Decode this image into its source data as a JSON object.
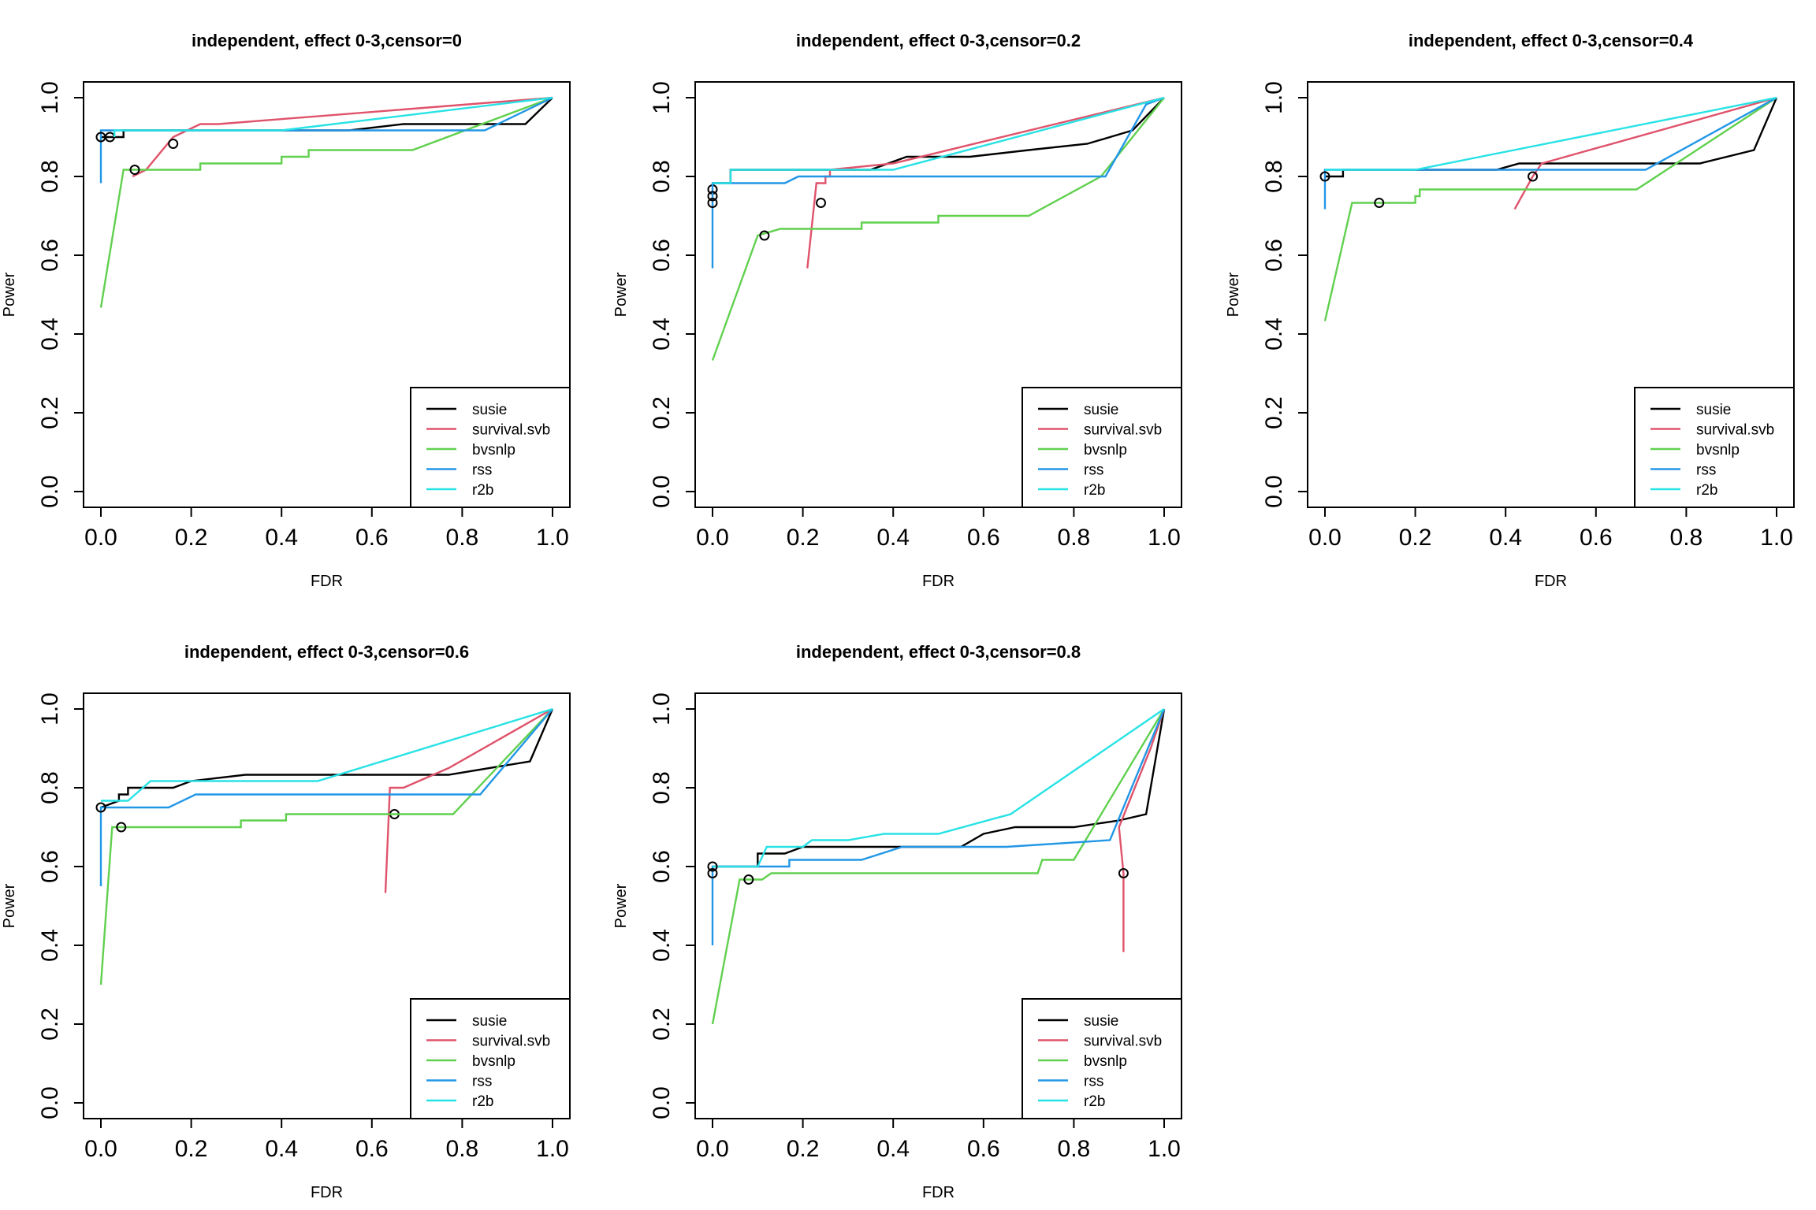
{
  "figure": {
    "legend_entries": [
      {
        "name": "susie",
        "color": "#000000"
      },
      {
        "name": "survival.svb",
        "color": "#DF536B"
      },
      {
        "name": "bvsnlp",
        "color": "#61D04F"
      },
      {
        "name": "rss",
        "color": "#2297E6"
      },
      {
        "name": "r2b",
        "color": "#28E2E5"
      }
    ]
  },
  "chart_data": [
    {
      "type": "line",
      "title": "independent, effect 0-3,censor=0",
      "xlabel": "FDR",
      "ylabel": "Power",
      "xlim": [
        0,
        1
      ],
      "ylim": [
        0,
        1
      ],
      "xticks": [
        "0.0",
        "0.2",
        "0.4",
        "0.6",
        "0.8",
        "1.0"
      ],
      "yticks": [
        "0.0",
        "0.2",
        "0.4",
        "0.6",
        "0.8",
        "1.0"
      ],
      "legend_position": "bottom-right",
      "series": [
        {
          "name": "susie",
          "color": "#000000",
          "points": [
            [
              0,
              0.9
            ],
            [
              0.05,
              0.9
            ],
            [
              0.05,
              0.917
            ],
            [
              0.2,
              0.917
            ],
            [
              0.55,
              0.917
            ],
            [
              0.67,
              0.933
            ],
            [
              0.94,
              0.933
            ],
            [
              1,
              1
            ]
          ],
          "marker": [
            0.02,
            0.9
          ]
        },
        {
          "name": "survival.svb",
          "color": "#DF536B",
          "points": [
            [
              0.07,
              0.8
            ],
            [
              0.1,
              0.817
            ],
            [
              0.16,
              0.9
            ],
            [
              0.22,
              0.933
            ],
            [
              0.26,
              0.933
            ],
            [
              1,
              1
            ]
          ],
          "marker": [
            0.16,
            0.883
          ]
        },
        {
          "name": "bvsnlp",
          "color": "#61D04F",
          "points": [
            [
              0,
              0.467
            ],
            [
              0.05,
              0.817
            ],
            [
              0.22,
              0.817
            ],
            [
              0.22,
              0.833
            ],
            [
              0.4,
              0.833
            ],
            [
              0.4,
              0.85
            ],
            [
              0.46,
              0.85
            ],
            [
              0.46,
              0.867
            ],
            [
              0.69,
              0.867
            ],
            [
              1,
              1
            ]
          ],
          "marker": [
            0.075,
            0.817
          ]
        },
        {
          "name": "rss",
          "color": "#2297E6",
          "points": [
            [
              0,
              0.783
            ],
            [
              0,
              0.917
            ],
            [
              0.85,
              0.917
            ],
            [
              1,
              1
            ]
          ],
          "marker": [
            0,
            0.9
          ]
        },
        {
          "name": "r2b",
          "color": "#28E2E5",
          "points": [
            [
              0.03,
              0.9
            ],
            [
              0.03,
              0.917
            ],
            [
              0.4,
              0.917
            ],
            [
              1,
              1
            ]
          ],
          "marker": null
        }
      ]
    },
    {
      "type": "line",
      "title": "independent, effect 0-3,censor=0.2",
      "xlabel": "FDR",
      "ylabel": "Power",
      "xlim": [
        0,
        1
      ],
      "ylim": [
        0,
        1
      ],
      "xticks": [
        "0.0",
        "0.2",
        "0.4",
        "0.6",
        "0.8",
        "1.0"
      ],
      "yticks": [
        "0.0",
        "0.2",
        "0.4",
        "0.6",
        "0.8",
        "1.0"
      ],
      "legend_position": "bottom-right",
      "series": [
        {
          "name": "susie",
          "color": "#000000",
          "points": [
            [
              0,
              0.783
            ],
            [
              0.04,
              0.783
            ],
            [
              0.04,
              0.817
            ],
            [
              0.35,
              0.817
            ],
            [
              0.43,
              0.85
            ],
            [
              0.57,
              0.85
            ],
            [
              0.7,
              0.867
            ],
            [
              0.83,
              0.883
            ],
            [
              0.93,
              0.917
            ],
            [
              1,
              1
            ]
          ],
          "marker": [
            0,
            0.767
          ]
        },
        {
          "name": "survival.svb",
          "color": "#DF536B",
          "points": [
            [
              0.21,
              0.567
            ],
            [
              0.23,
              0.783
            ],
            [
              0.25,
              0.783
            ],
            [
              0.25,
              0.8
            ],
            [
              0.26,
              0.8
            ],
            [
              0.26,
              0.817
            ],
            [
              0.4,
              0.833
            ],
            [
              1,
              1
            ]
          ],
          "marker": [
            0.24,
            0.733
          ]
        },
        {
          "name": "bvsnlp",
          "color": "#61D04F",
          "points": [
            [
              0,
              0.333
            ],
            [
              0.1,
              0.65
            ],
            [
              0.15,
              0.667
            ],
            [
              0.33,
              0.667
            ],
            [
              0.33,
              0.683
            ],
            [
              0.5,
              0.683
            ],
            [
              0.5,
              0.7
            ],
            [
              0.7,
              0.7
            ],
            [
              0.86,
              0.8
            ],
            [
              1,
              1
            ]
          ],
          "marker": [
            0.115,
            0.65
          ]
        },
        {
          "name": "rss",
          "color": "#2297E6",
          "points": [
            [
              0,
              0.567
            ],
            [
              0,
              0.783
            ],
            [
              0.16,
              0.783
            ],
            [
              0.19,
              0.8
            ],
            [
              0.87,
              0.8
            ],
            [
              0.96,
              0.983
            ],
            [
              1,
              1
            ]
          ],
          "marker": [
            0,
            0.75
          ]
        },
        {
          "name": "r2b",
          "color": "#28E2E5",
          "points": [
            [
              0,
              0.783
            ],
            [
              0.04,
              0.783
            ],
            [
              0.04,
              0.817
            ],
            [
              0.4,
              0.817
            ],
            [
              1,
              1
            ]
          ],
          "marker": [
            0,
            0.733
          ]
        }
      ]
    },
    {
      "type": "line",
      "title": "independent, effect 0-3,censor=0.4",
      "xlabel": "FDR",
      "ylabel": "Power",
      "xlim": [
        0,
        1
      ],
      "ylim": [
        0,
        1
      ],
      "xticks": [
        "0.0",
        "0.2",
        "0.4",
        "0.6",
        "0.8",
        "1.0"
      ],
      "yticks": [
        "0.0",
        "0.2",
        "0.4",
        "0.6",
        "0.8",
        "1.0"
      ],
      "legend_position": "bottom-right",
      "series": [
        {
          "name": "susie",
          "color": "#000000",
          "points": [
            [
              0,
              0.8
            ],
            [
              0.04,
              0.8
            ],
            [
              0.04,
              0.817
            ],
            [
              0.38,
              0.817
            ],
            [
              0.43,
              0.833
            ],
            [
              0.83,
              0.833
            ],
            [
              0.95,
              0.867
            ],
            [
              1,
              1
            ]
          ],
          "marker": null
        },
        {
          "name": "survival.svb",
          "color": "#DF536B",
          "points": [
            [
              0.42,
              0.717
            ],
            [
              0.46,
              0.8
            ],
            [
              0.48,
              0.833
            ],
            [
              1,
              1
            ]
          ],
          "marker": [
            0.46,
            0.8
          ]
        },
        {
          "name": "bvsnlp",
          "color": "#61D04F",
          "points": [
            [
              0,
              0.433
            ],
            [
              0.06,
              0.733
            ],
            [
              0.2,
              0.733
            ],
            [
              0.2,
              0.75
            ],
            [
              0.21,
              0.75
            ],
            [
              0.21,
              0.767
            ],
            [
              0.69,
              0.767
            ],
            [
              1,
              1
            ]
          ],
          "marker": [
            0.12,
            0.733
          ]
        },
        {
          "name": "rss",
          "color": "#2297E6",
          "points": [
            [
              0,
              0.717
            ],
            [
              0,
              0.817
            ],
            [
              0.71,
              0.817
            ],
            [
              1,
              1
            ]
          ],
          "marker": [
            0,
            0.8
          ]
        },
        {
          "name": "r2b",
          "color": "#28E2E5",
          "points": [
            [
              0,
              0.817
            ],
            [
              0.2,
              0.817
            ],
            [
              1,
              1
            ]
          ],
          "marker": null
        }
      ]
    },
    {
      "type": "line",
      "title": "independent, effect 0-3,censor=0.6",
      "xlabel": "FDR",
      "ylabel": "Power",
      "xlim": [
        0,
        1
      ],
      "ylim": [
        0,
        1
      ],
      "xticks": [
        "0.0",
        "0.2",
        "0.4",
        "0.6",
        "0.8",
        "1.0"
      ],
      "yticks": [
        "0.0",
        "0.2",
        "0.4",
        "0.6",
        "0.8",
        "1.0"
      ],
      "legend_position": "bottom-right",
      "series": [
        {
          "name": "susie",
          "color": "#000000",
          "points": [
            [
              0,
              0.75
            ],
            [
              0.04,
              0.767
            ],
            [
              0.04,
              0.783
            ],
            [
              0.06,
              0.783
            ],
            [
              0.06,
              0.8
            ],
            [
              0.16,
              0.8
            ],
            [
              0.2,
              0.817
            ],
            [
              0.32,
              0.833
            ],
            [
              0.77,
              0.833
            ],
            [
              0.95,
              0.867
            ],
            [
              1,
              1
            ]
          ],
          "marker": null
        },
        {
          "name": "survival.svb",
          "color": "#DF536B",
          "points": [
            [
              0.63,
              0.533
            ],
            [
              0.64,
              0.8
            ],
            [
              0.67,
              0.8
            ],
            [
              0.77,
              0.85
            ],
            [
              1,
              1
            ]
          ],
          "marker": [
            0.65,
            0.733
          ]
        },
        {
          "name": "bvsnlp",
          "color": "#61D04F",
          "points": [
            [
              0,
              0.3
            ],
            [
              0.025,
              0.7
            ],
            [
              0.31,
              0.7
            ],
            [
              0.31,
              0.717
            ],
            [
              0.41,
              0.717
            ],
            [
              0.41,
              0.733
            ],
            [
              0.78,
              0.733
            ],
            [
              1,
              1
            ]
          ],
          "marker": [
            0.045,
            0.7
          ]
        },
        {
          "name": "rss",
          "color": "#2297E6",
          "points": [
            [
              0,
              0.55
            ],
            [
              0,
              0.75
            ],
            [
              0.15,
              0.75
            ],
            [
              0.21,
              0.783
            ],
            [
              0.84,
              0.783
            ],
            [
              1,
              1
            ]
          ],
          "marker": [
            0,
            0.75
          ]
        },
        {
          "name": "r2b",
          "color": "#28E2E5",
          "points": [
            [
              0,
              0.767
            ],
            [
              0.06,
              0.767
            ],
            [
              0.11,
              0.817
            ],
            [
              0.48,
              0.817
            ],
            [
              1,
              1
            ]
          ],
          "marker": null
        }
      ]
    },
    {
      "type": "line",
      "title": "independent, effect 0-3,censor=0.8",
      "xlabel": "FDR",
      "ylabel": "Power",
      "xlim": [
        0,
        1
      ],
      "ylim": [
        0,
        1
      ],
      "xticks": [
        "0.0",
        "0.2",
        "0.4",
        "0.6",
        "0.8",
        "1.0"
      ],
      "yticks": [
        "0.0",
        "0.2",
        "0.4",
        "0.6",
        "0.8",
        "1.0"
      ],
      "legend_position": "bottom-right",
      "series": [
        {
          "name": "susie",
          "color": "#000000",
          "points": [
            [
              0,
              0.6
            ],
            [
              0.1,
              0.6
            ],
            [
              0.1,
              0.633
            ],
            [
              0.16,
              0.633
            ],
            [
              0.2,
              0.65
            ],
            [
              0.55,
              0.65
            ],
            [
              0.6,
              0.683
            ],
            [
              0.67,
              0.7
            ],
            [
              0.8,
              0.7
            ],
            [
              0.9,
              0.717
            ],
            [
              0.96,
              0.733
            ],
            [
              1,
              1
            ]
          ],
          "marker": null
        },
        {
          "name": "survival.svb",
          "color": "#DF536B",
          "points": [
            [
              0.91,
              0.383
            ],
            [
              0.91,
              0.583
            ],
            [
              0.9,
              0.7
            ],
            [
              0.97,
              0.9
            ],
            [
              1,
              1
            ]
          ],
          "marker": [
            0.91,
            0.583
          ]
        },
        {
          "name": "bvsnlp",
          "color": "#61D04F",
          "points": [
            [
              0,
              0.2
            ],
            [
              0.06,
              0.567
            ],
            [
              0.11,
              0.567
            ],
            [
              0.13,
              0.583
            ],
            [
              0.72,
              0.583
            ],
            [
              0.73,
              0.617
            ],
            [
              0.8,
              0.617
            ],
            [
              1,
              1
            ]
          ],
          "marker": [
            0.08,
            0.567
          ]
        },
        {
          "name": "rss",
          "color": "#2297E6",
          "points": [
            [
              0,
              0.4
            ],
            [
              0,
              0.6
            ],
            [
              0.17,
              0.6
            ],
            [
              0.17,
              0.617
            ],
            [
              0.33,
              0.617
            ],
            [
              0.42,
              0.65
            ],
            [
              0.65,
              0.65
            ],
            [
              0.88,
              0.667
            ],
            [
              1,
              1
            ]
          ],
          "marker": [
            0,
            0.583
          ]
        },
        {
          "name": "r2b",
          "color": "#28E2E5",
          "points": [
            [
              0,
              0.6
            ],
            [
              0.1,
              0.6
            ],
            [
              0.12,
              0.65
            ],
            [
              0.2,
              0.65
            ],
            [
              0.22,
              0.667
            ],
            [
              0.3,
              0.667
            ],
            [
              0.38,
              0.683
            ],
            [
              0.5,
              0.683
            ],
            [
              0.66,
              0.733
            ],
            [
              1,
              1
            ]
          ],
          "marker": [
            0,
            0.6
          ]
        }
      ]
    }
  ]
}
